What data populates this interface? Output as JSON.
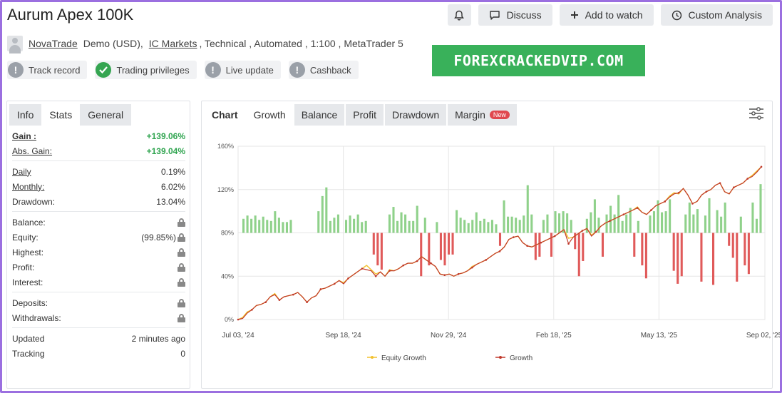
{
  "header": {
    "title": "Aurum Apex 100K",
    "actions": {
      "discuss": "Discuss",
      "watch": "Add to watch",
      "analysis": "Custom Analysis"
    },
    "meta": {
      "user": "NovaTrade",
      "account_type": "Demo (USD),",
      "broker": "IC Markets",
      "rest": ", Technical , Automated , 1:100 , MetaTrader 5"
    },
    "badges": [
      {
        "label": "Track record",
        "icon": "exclamation-icon",
        "color": "#9aa0a8"
      },
      {
        "label": "Trading privileges",
        "icon": "check-icon",
        "color": "#35a551"
      },
      {
        "label": "Live update",
        "icon": "exclamation-icon",
        "color": "#9aa0a8"
      },
      {
        "label": "Cashback",
        "icon": "exclamation-icon",
        "color": "#9aa0a8"
      }
    ],
    "promo": "FOREXCRACKEDVIP.COM"
  },
  "left_panel": {
    "tabs": [
      "Info",
      "Stats",
      "General"
    ],
    "stats": {
      "gain": {
        "label": "Gain :",
        "value": "+139.06%"
      },
      "abs_gain": {
        "label": "Abs. Gain:",
        "value": "+139.04%"
      },
      "daily": {
        "label": "Daily",
        "value": "0.19%"
      },
      "monthly": {
        "label": "Monthly:",
        "value": "6.02%"
      },
      "drawdown": {
        "label": "Drawdown:",
        "value": "13.04%"
      },
      "balance": {
        "label": "Balance:"
      },
      "equity": {
        "label": "Equity:",
        "value": "(99.85%)"
      },
      "highest": {
        "label": "Highest:"
      },
      "profit": {
        "label": "Profit:"
      },
      "interest": {
        "label": "Interest:"
      },
      "deposits": {
        "label": "Deposits:"
      },
      "withdrawals": {
        "label": "Withdrawals:"
      },
      "updated": {
        "label": "Updated",
        "value": "2 minutes ago"
      },
      "tracking": {
        "label": "Tracking",
        "value": "0"
      }
    }
  },
  "right_panel": {
    "tabs": [
      "Chart",
      "Growth",
      "Balance",
      "Profit",
      "Drawdown",
      "Margin"
    ],
    "new_badge": "New",
    "active_tab": "Growth"
  },
  "chart_data": {
    "type": "line",
    "title": "",
    "xlabel": "",
    "ylabel": "",
    "x_ticks": [
      "Jul 03, '24",
      "Sep 18, '24",
      "Nov 29, '24",
      "Feb 18, '25",
      "May 13, '25",
      "Sep 02, '25"
    ],
    "y_ticks": [
      "0%",
      "40%",
      "80%",
      "120%",
      "160%"
    ],
    "ylim": [
      0,
      160
    ],
    "grid": true,
    "legend_position": "bottom",
    "colors": {
      "equity": "#f2c12e",
      "growth": "#c0392b",
      "bar_pos": "#8fd18a",
      "bar_neg": "#e05a5a"
    },
    "series": [
      {
        "name": "Equity Growth",
        "values": [
          0,
          2,
          7,
          9,
          13,
          14,
          16,
          21,
          24,
          18,
          21,
          22,
          23,
          25,
          21,
          16,
          20,
          22,
          28,
          29,
          31,
          33,
          36,
          34,
          38,
          41,
          44,
          47,
          50,
          46,
          42,
          44,
          40,
          46,
          45,
          47,
          50,
          52,
          52,
          54,
          58,
          55,
          52,
          49,
          42,
          41,
          42,
          40,
          42,
          43,
          45,
          49,
          51,
          53,
          55,
          58,
          61,
          63,
          67,
          74,
          76,
          77,
          71,
          68,
          67,
          69,
          71,
          73,
          75,
          77,
          80,
          83,
          75,
          76,
          79,
          82,
          84,
          78,
          81,
          86,
          89,
          91,
          93,
          95,
          97,
          99,
          101,
          104,
          99,
          97,
          101,
          105,
          107,
          109,
          114,
          117,
          116,
          121,
          115,
          107,
          109,
          115,
          118,
          120,
          124,
          126,
          118,
          116,
          122,
          124,
          126,
          130,
          133,
          137,
          141
        ]
      },
      {
        "name": "Growth",
        "values": [
          0,
          1,
          6,
          9,
          13,
          14,
          16,
          21,
          23,
          18,
          21,
          22,
          23,
          25,
          21,
          16,
          20,
          22,
          28,
          29,
          31,
          33,
          36,
          33,
          38,
          41,
          44,
          47,
          46,
          45,
          40,
          44,
          40,
          45,
          45,
          47,
          50,
          52,
          52,
          54,
          58,
          55,
          52,
          49,
          42,
          41,
          42,
          40,
          42,
          43,
          45,
          48,
          51,
          53,
          55,
          58,
          61,
          63,
          67,
          74,
          76,
          77,
          71,
          68,
          67,
          69,
          71,
          73,
          75,
          77,
          80,
          83,
          70,
          76,
          79,
          82,
          84,
          77,
          81,
          86,
          89,
          91,
          93,
          95,
          97,
          99,
          101,
          103,
          99,
          97,
          101,
          105,
          107,
          109,
          113,
          116,
          117,
          121,
          115,
          107,
          109,
          115,
          118,
          120,
          124,
          126,
          118,
          116,
          122,
          124,
          126,
          130,
          132,
          136,
          141
        ]
      }
    ],
    "daily_bars": [
      13,
      16,
      13,
      16,
      12,
      15,
      12,
      11,
      20,
      14,
      10,
      10,
      12,
      0,
      0,
      0,
      0,
      0,
      0,
      20,
      34,
      42,
      11,
      14,
      17,
      0,
      12,
      16,
      13,
      17,
      10,
      11,
      0,
      -20,
      -30,
      -34,
      0,
      17,
      24,
      11,
      19,
      17,
      11,
      11,
      25,
      -40,
      14,
      -30,
      0,
      10,
      -25,
      -30,
      -20,
      -20,
      21,
      14,
      12,
      9,
      12,
      19,
      11,
      13,
      10,
      12,
      8,
      -12,
      30,
      15,
      15,
      14,
      12,
      16,
      44,
      17,
      -25,
      -22,
      12,
      17,
      -22,
      20,
      18,
      20,
      18,
      12,
      -15,
      -40,
      -26,
      13,
      19,
      31,
      14,
      -22,
      17,
      25,
      17,
      35,
      11,
      17,
      23,
      -22,
      11,
      -30,
      -42,
      16,
      20,
      30,
      19,
      20,
      31,
      -35,
      -47,
      -40,
      17,
      28,
      17,
      22,
      -45,
      16,
      32,
      -48,
      21,
      15,
      28,
      -12,
      -23,
      -45,
      15,
      -30,
      -38,
      28,
      13,
      45
    ]
  }
}
